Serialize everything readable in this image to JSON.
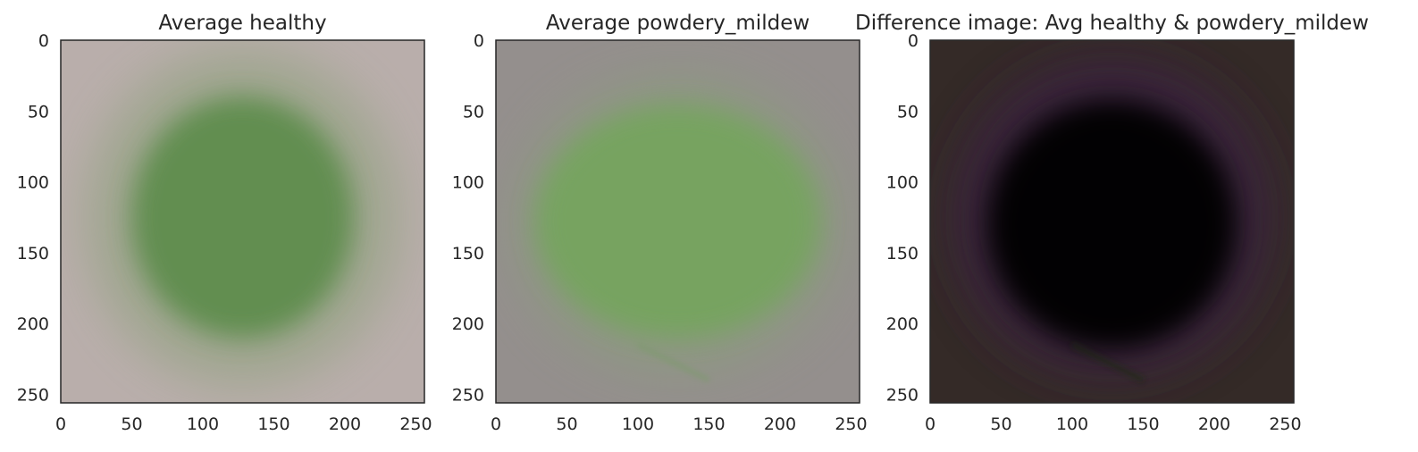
{
  "figure": {
    "background": "#ffffff",
    "text_color": "#262626",
    "frame_color": "#262626"
  },
  "chart_data": [
    {
      "type": "heatmap",
      "title": "Average healthy",
      "xlabel": "",
      "ylabel": "",
      "xlim": [
        0,
        256
      ],
      "ylim": [
        256,
        0
      ],
      "xticks": [
        0,
        50,
        100,
        150,
        200,
        250
      ],
      "yticks": [
        0,
        50,
        100,
        150,
        200,
        250
      ],
      "grid": false,
      "image": {
        "background": "#b9aeab",
        "halo_color": "#9aa489",
        "halo_center": [
          128,
          125
        ],
        "halo_radius": [
          110,
          118
        ],
        "blob_color": "#5f8d4d",
        "blob_center": [
          128,
          125
        ],
        "blob_radius": [
          78,
          85
        ],
        "midrib_color": "#7aa36a",
        "midrib": [
          128,
          60,
          128,
          210
        ]
      }
    },
    {
      "type": "heatmap",
      "title": "Average powdery_mildew",
      "xlabel": "",
      "ylabel": "",
      "xlim": [
        0,
        256
      ],
      "ylim": [
        256,
        0
      ],
      "xticks": [
        0,
        50,
        100,
        150,
        200,
        250
      ],
      "yticks": [
        0,
        50,
        100,
        150,
        200,
        250
      ],
      "grid": false,
      "image": {
        "background": "#948f8d",
        "halo_color": "#8c9a80",
        "halo_center": [
          128,
          130
        ],
        "halo_radius": [
          115,
          105
        ],
        "blob_color": "#76a45f",
        "blob_center": [
          128,
          128
        ],
        "blob_radius": [
          100,
          82
        ],
        "midrib_color": "#7e9a6e",
        "midrib": [
          100,
          215,
          150,
          240
        ]
      }
    },
    {
      "type": "heatmap",
      "title": "Difference image: Avg healthy & powdery_mildew",
      "xlabel": "",
      "ylabel": "",
      "xlim": [
        0,
        256
      ],
      "ylim": [
        256,
        0
      ],
      "xticks": [
        0,
        50,
        100,
        150,
        200,
        250
      ],
      "yticks": [
        0,
        50,
        100,
        150,
        200,
        250
      ],
      "grid": false,
      "image": {
        "background": "#342a27",
        "halo_color": "#3a2440",
        "halo_center": [
          128,
          125
        ],
        "halo_radius": [
          112,
          112
        ],
        "blob_color": "#050305",
        "blob_center": [
          128,
          130
        ],
        "blob_radius": [
          88,
          88
        ],
        "midrib_color": "#1c2a12",
        "midrib": [
          100,
          215,
          150,
          240
        ]
      }
    }
  ]
}
